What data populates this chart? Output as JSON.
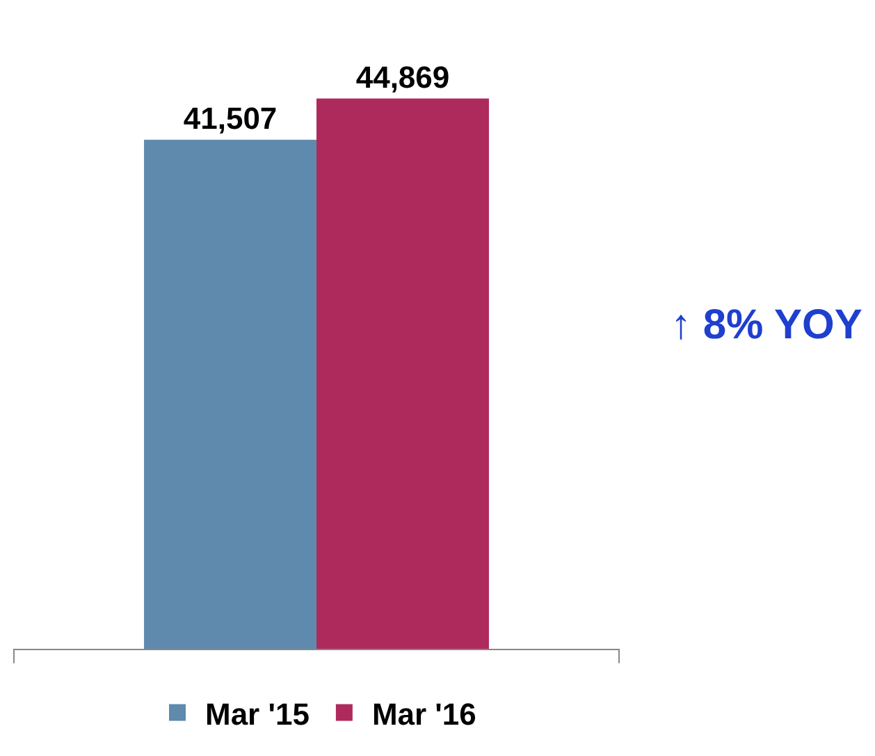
{
  "chart_data": {
    "type": "bar",
    "categories": [
      null
    ],
    "series": [
      {
        "name": "Mar '15",
        "color": "#5f89ad",
        "values": [
          41507
        ],
        "value_labels": [
          "41,507"
        ]
      },
      {
        "name": "Mar '16",
        "color": "#ae2a5c",
        "values": [
          44869
        ],
        "value_labels": [
          "44,869"
        ]
      }
    ],
    "legend": "bottom",
    "annotations": [
      "↑ 8% YOY"
    ]
  }
}
